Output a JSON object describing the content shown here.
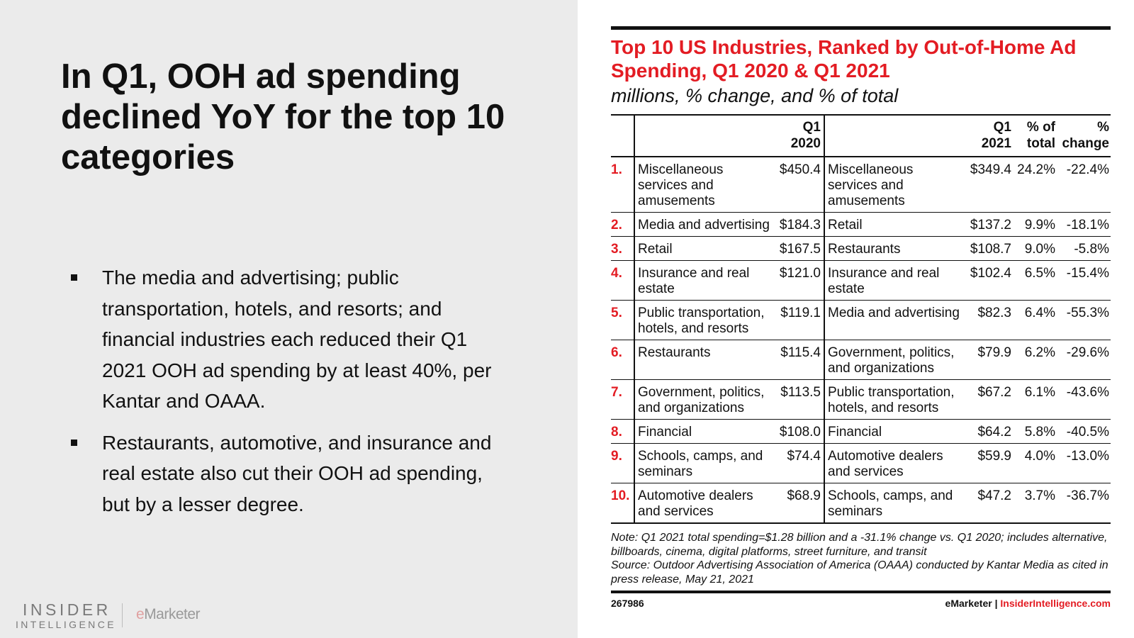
{
  "slide": {
    "headline": "In Q1, OOH ad spending declined YoY for the top 10 categories",
    "bullets": [
      "The media and advertising; public transportation, hotels, and resorts; and financial industries each reduced their Q1 2021 OOH ad spending by at least 40%, per Kantar and OAAA.",
      "Restaurants, automotive, and insurance and real estate also cut their OOH ad spending, but by a lesser degree."
    ]
  },
  "logo": {
    "insider": "INSIDER",
    "intelligence": "INTELLIGENCE",
    "emarketer_e": "e",
    "emarketer_rest": "Marketer"
  },
  "chart": {
    "title": "Top 10 US Industries, Ranked by Out-of-Home Ad Spending, Q1 2020 & Q1 2021",
    "subtitle": "millions, % change, and % of total",
    "headers": {
      "q1_2020": "Q1 2020",
      "q1_2021": "Q1 2021",
      "pct_total": "% of total",
      "pct_change": "% change"
    },
    "rows": [
      {
        "rank": "1.",
        "industry_2020": "Miscellaneous services and amusements",
        "value_2020": "$450.4",
        "industry_2021": "Miscellaneous services and amusements",
        "value_2021": "$349.4",
        "pct_total": "24.2%",
        "pct_change": "-22.4%"
      },
      {
        "rank": "2.",
        "industry_2020": "Media and advertising",
        "value_2020": "$184.3",
        "industry_2021": "Retail",
        "value_2021": "$137.2",
        "pct_total": "9.9%",
        "pct_change": "-18.1%"
      },
      {
        "rank": "3.",
        "industry_2020": "Retail",
        "value_2020": "$167.5",
        "industry_2021": "Restaurants",
        "value_2021": "$108.7",
        "pct_total": "9.0%",
        "pct_change": "-5.8%"
      },
      {
        "rank": "4.",
        "industry_2020": "Insurance and real estate",
        "value_2020": "$121.0",
        "industry_2021": "Insurance and real estate",
        "value_2021": "$102.4",
        "pct_total": "6.5%",
        "pct_change": "-15.4%"
      },
      {
        "rank": "5.",
        "industry_2020": "Public transportation, hotels, and resorts",
        "value_2020": "$119.1",
        "industry_2021": "Media and advertising",
        "value_2021": "$82.3",
        "pct_total": "6.4%",
        "pct_change": "-55.3%"
      },
      {
        "rank": "6.",
        "industry_2020": "Restaurants",
        "value_2020": "$115.4",
        "industry_2021": "Government, politics, and organizations",
        "value_2021": "$79.9",
        "pct_total": "6.2%",
        "pct_change": "-29.6%"
      },
      {
        "rank": "7.",
        "industry_2020": "Government, politics, and organizations",
        "value_2020": "$113.5",
        "industry_2021": "Public transportation, hotels, and resorts",
        "value_2021": "$67.2",
        "pct_total": "6.1%",
        "pct_change": "-43.6%"
      },
      {
        "rank": "8.",
        "industry_2020": "Financial",
        "value_2020": "$108.0",
        "industry_2021": "Financial",
        "value_2021": "$64.2",
        "pct_total": "5.8%",
        "pct_change": "-40.5%"
      },
      {
        "rank": "9.",
        "industry_2020": "Schools, camps, and seminars",
        "value_2020": "$74.4",
        "industry_2021": "Automotive dealers and services",
        "value_2021": "$59.9",
        "pct_total": "4.0%",
        "pct_change": "-13.0%"
      },
      {
        "rank": "10.",
        "industry_2020": "Automotive dealers and services",
        "value_2020": "$68.9",
        "industry_2021": "Schools, camps, and seminars",
        "value_2021": "$47.2",
        "pct_total": "3.7%",
        "pct_change": "-36.7%"
      }
    ],
    "note": "Note: Q1 2021 total spending=$1.28 billion and a -31.1% change vs. Q1 2020; includes alternative, billboards, cinema, digital platforms, street furniture, and transit",
    "source": "Source: Outdoor Advertising Association of America (OAAA) conducted by Kantar Media as cited in press release, May 21, 2021",
    "chart_id": "267986",
    "footer_brand": "eMarketer",
    "footer_sep": "|",
    "footer_site": "InsiderIntelligence.com",
    "accent_color": "#e31c23"
  }
}
